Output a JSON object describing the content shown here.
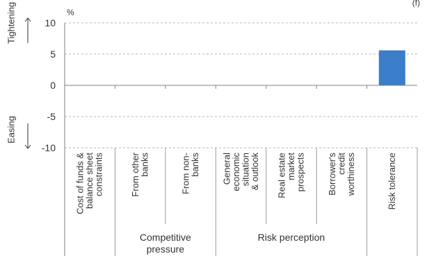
{
  "chart_data": {
    "type": "bar",
    "unit": "%",
    "ylim": [
      -10,
      10
    ],
    "yticks": [
      "10",
      "5",
      "0",
      "-5",
      "-10"
    ],
    "corner_note": "(f)",
    "direction_labels": {
      "up": "Tightening",
      "down": "Easing"
    },
    "grid": true,
    "bar_color": "#3a7dc9",
    "categories": [
      {
        "lines": [
          "Cost of funds &",
          "balance sheet",
          "constraints"
        ],
        "value": 0
      },
      {
        "lines": [
          "From other",
          "banks"
        ],
        "value": 0
      },
      {
        "lines": [
          "From non-",
          "banks"
        ],
        "value": 0
      },
      {
        "lines": [
          "General",
          "economic",
          "situation",
          "& outlook"
        ],
        "value": 0
      },
      {
        "lines": [
          "Real estate",
          "market",
          "prospects"
        ],
        "value": 0
      },
      {
        "lines": [
          "Borrower's",
          "credit",
          "worthiness"
        ],
        "value": 0
      },
      {
        "lines": [
          "Risk tolerance"
        ],
        "value": 5.6
      }
    ],
    "groups": [
      {
        "lines": [
          "Competitive",
          "pressure"
        ],
        "span": [
          1,
          2
        ]
      },
      {
        "lines": [
          "Risk perception"
        ],
        "span": [
          3,
          5
        ]
      }
    ]
  }
}
